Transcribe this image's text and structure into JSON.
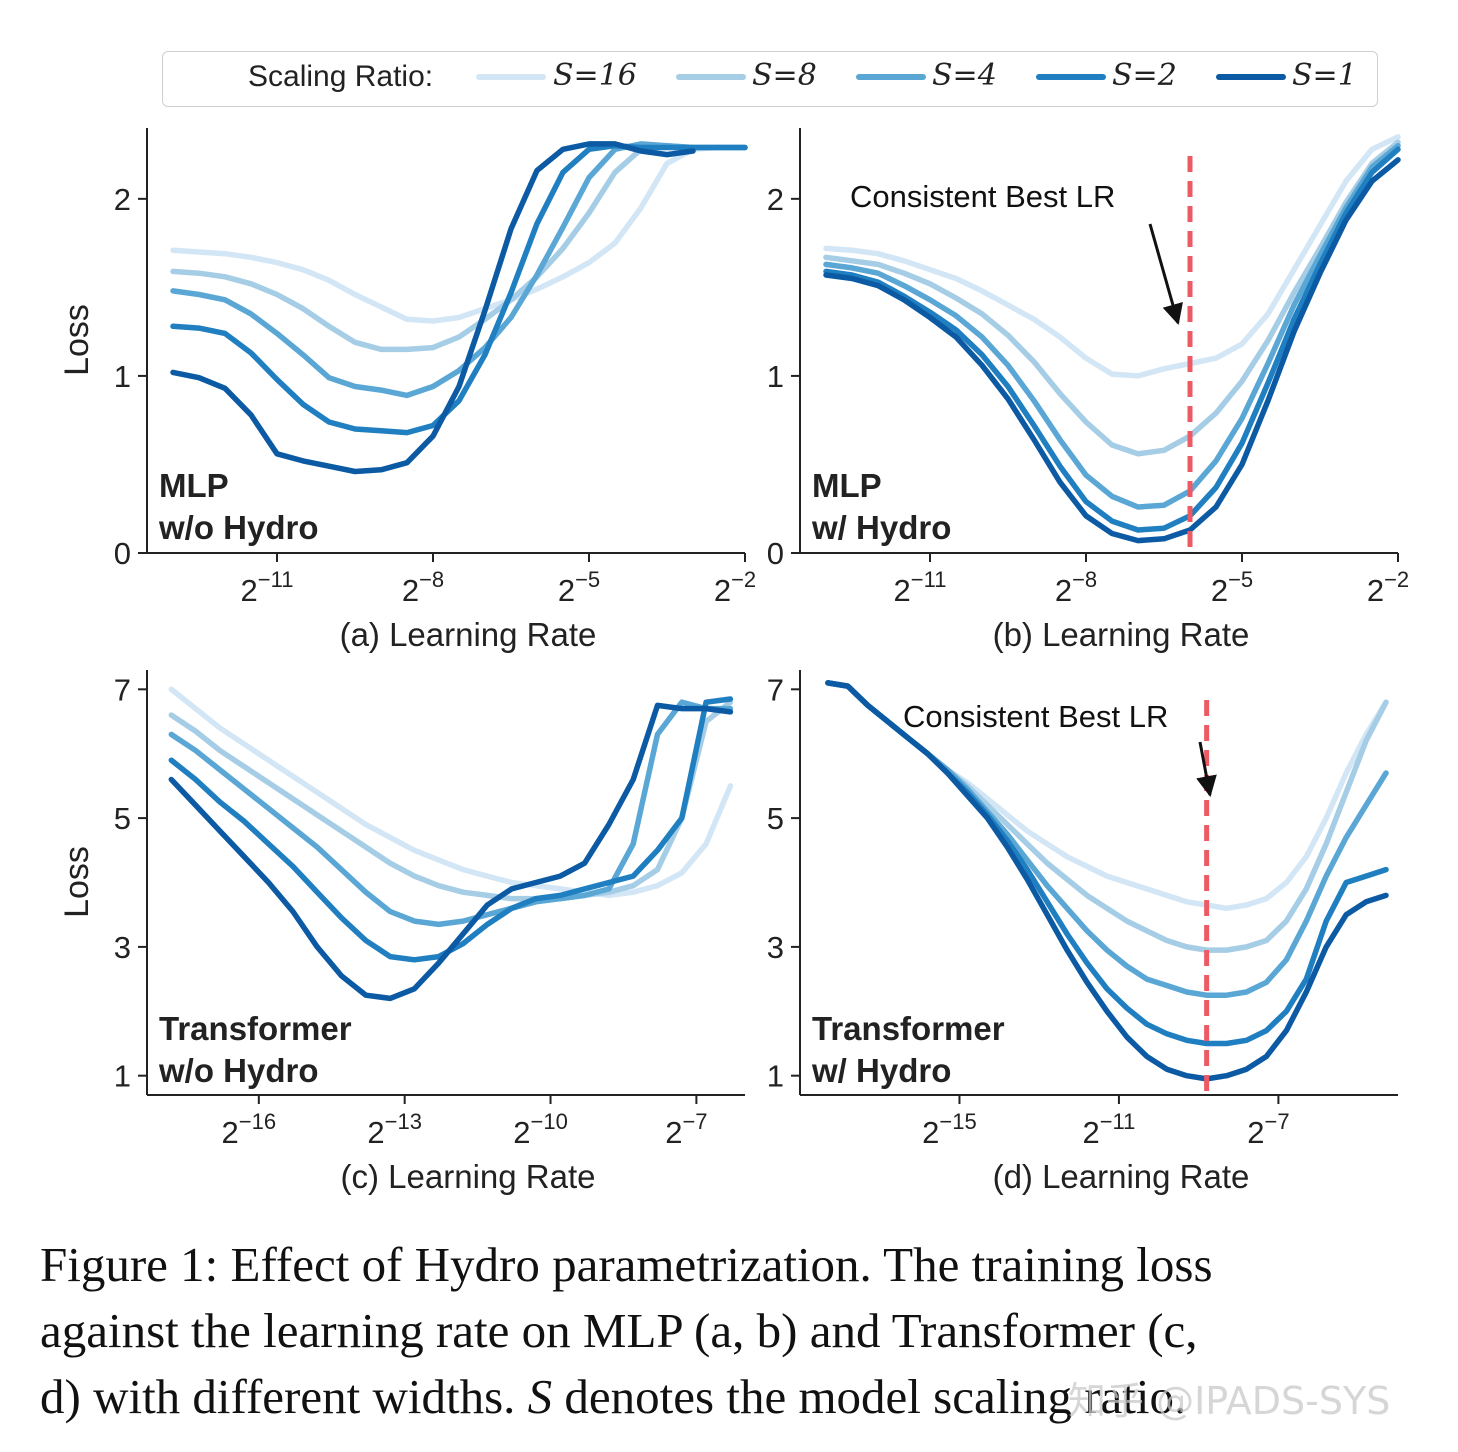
{
  "legend": {
    "title": "Scaling Ratio:",
    "entries": [
      {
        "label": "S=16",
        "color": "#d3e6f5"
      },
      {
        "label": "S=8",
        "color": "#a6cde6"
      },
      {
        "label": "S=4",
        "color": "#5aa7d6"
      },
      {
        "label": "S=2",
        "color": "#1f7fc0"
      },
      {
        "label": "S=1",
        "color": "#0b5aa3"
      }
    ]
  },
  "reference_line_color": "#ee5a64",
  "chart_data": [
    {
      "id": "a",
      "type": "line",
      "title": "MLP\nw/o Hydro",
      "title_lines": [
        "MLP",
        "w/o Hydro"
      ],
      "xlabel": "(a) Learning Rate",
      "ylabel": "Loss",
      "x_scale": "log2",
      "xlim": [
        -13.5,
        -2
      ],
      "ylim": [
        0,
        2.4
      ],
      "xticks": [
        -11,
        -8,
        -5,
        -2
      ],
      "xtick_labels": [
        "2^-11",
        "2^-8",
        "2^-5",
        "2^-2"
      ],
      "yticks": [
        0,
        1,
        2
      ],
      "ytick_labels": [
        "0",
        "1",
        "2"
      ],
      "x": [
        -13,
        -12.5,
        -12,
        -11.5,
        -11,
        -10.5,
        -10,
        -9.5,
        -9,
        -8.5,
        -8,
        -7.5,
        -7,
        -6.5,
        -6,
        -5.5,
        -5,
        -4.5,
        -4,
        -3.5,
        -3,
        -2.5,
        -2
      ],
      "series": [
        {
          "name": "S=16",
          "values": [
            1.71,
            1.7,
            1.69,
            1.67,
            1.64,
            1.6,
            1.54,
            1.46,
            1.39,
            1.32,
            1.31,
            1.33,
            1.38,
            1.43,
            1.49,
            1.56,
            1.64,
            1.75,
            1.95,
            2.2,
            2.28,
            2.29,
            2.29
          ]
        },
        {
          "name": "S=8",
          "values": [
            1.59,
            1.58,
            1.56,
            1.52,
            1.46,
            1.38,
            1.28,
            1.19,
            1.15,
            1.15,
            1.16,
            1.22,
            1.32,
            1.43,
            1.56,
            1.72,
            1.92,
            2.15,
            2.28,
            2.3,
            2.29,
            2.29,
            2.29
          ]
        },
        {
          "name": "S=4",
          "values": [
            1.48,
            1.46,
            1.43,
            1.35,
            1.24,
            1.12,
            0.99,
            0.94,
            0.92,
            0.89,
            0.94,
            1.03,
            1.16,
            1.33,
            1.57,
            1.84,
            2.12,
            2.28,
            2.31,
            2.3,
            2.29,
            2.29,
            2.29
          ]
        },
        {
          "name": "S=2",
          "values": [
            1.28,
            1.27,
            1.24,
            1.13,
            0.98,
            0.84,
            0.74,
            0.7,
            0.69,
            0.68,
            0.72,
            0.86,
            1.12,
            1.47,
            1.86,
            2.15,
            2.28,
            2.3,
            2.29,
            2.29,
            2.29,
            2.29,
            2.29
          ]
        },
        {
          "name": "S=1",
          "values": [
            1.02,
            0.99,
            0.93,
            0.78,
            0.56,
            0.52,
            0.49,
            0.46,
            0.47,
            0.51,
            0.66,
            0.94,
            1.37,
            1.83,
            2.16,
            2.28,
            2.31,
            2.31,
            2.27,
            2.25,
            2.27,
            null,
            null
          ]
        }
      ]
    },
    {
      "id": "b",
      "type": "line",
      "title": "MLP\nw/ Hydro",
      "title_lines": [
        "MLP",
        "w/ Hydro"
      ],
      "xlabel": "(b) Learning Rate",
      "ylabel": "",
      "x_scale": "log2",
      "xlim": [
        -13.5,
        -2
      ],
      "ylim": [
        0,
        2.4
      ],
      "xticks": [
        -11,
        -8,
        -5,
        -2
      ],
      "xtick_labels": [
        "2^-11",
        "2^-8",
        "2^-5",
        "2^-2"
      ],
      "yticks": [
        0,
        1,
        2
      ],
      "ytick_labels": [
        "0",
        "1",
        "2"
      ],
      "reference_x": -6,
      "annotation": "Consistent Best LR",
      "x": [
        -13,
        -12.5,
        -12,
        -11.5,
        -11,
        -10.5,
        -10,
        -9.5,
        -9,
        -8.5,
        -8,
        -7.5,
        -7,
        -6.5,
        -6,
        -5.5,
        -5,
        -4.5,
        -4,
        -3.5,
        -3,
        -2.5,
        -2
      ],
      "series": [
        {
          "name": "S=16",
          "values": [
            1.72,
            1.71,
            1.69,
            1.65,
            1.6,
            1.55,
            1.48,
            1.4,
            1.32,
            1.22,
            1.1,
            1.01,
            1.0,
            1.04,
            1.07,
            1.1,
            1.18,
            1.35,
            1.6,
            1.85,
            2.1,
            2.28,
            2.35
          ]
        },
        {
          "name": "S=8",
          "values": [
            1.67,
            1.65,
            1.63,
            1.58,
            1.52,
            1.44,
            1.35,
            1.23,
            1.08,
            0.9,
            0.74,
            0.61,
            0.56,
            0.58,
            0.66,
            0.79,
            0.97,
            1.2,
            1.47,
            1.72,
            1.98,
            2.2,
            2.32
          ]
        },
        {
          "name": "S=4",
          "values": [
            1.63,
            1.61,
            1.58,
            1.51,
            1.43,
            1.34,
            1.22,
            1.06,
            0.86,
            0.64,
            0.44,
            0.32,
            0.26,
            0.27,
            0.35,
            0.52,
            0.76,
            1.07,
            1.4,
            1.68,
            1.95,
            2.18,
            2.3
          ]
        },
        {
          "name": "S=2",
          "values": [
            1.59,
            1.57,
            1.53,
            1.45,
            1.36,
            1.26,
            1.12,
            0.94,
            0.72,
            0.49,
            0.29,
            0.18,
            0.13,
            0.14,
            0.21,
            0.37,
            0.62,
            0.96,
            1.32,
            1.63,
            1.92,
            2.15,
            2.28
          ]
        },
        {
          "name": "S=1",
          "values": [
            1.57,
            1.55,
            1.51,
            1.43,
            1.33,
            1.22,
            1.06,
            0.87,
            0.64,
            0.4,
            0.21,
            0.11,
            0.07,
            0.08,
            0.13,
            0.26,
            0.5,
            0.86,
            1.25,
            1.58,
            1.88,
            2.1,
            2.22
          ]
        }
      ]
    },
    {
      "id": "c",
      "type": "line",
      "title": "Transformer\nw/o Hydro",
      "title_lines": [
        "Transformer",
        "w/o Hydro"
      ],
      "xlabel": "(c) Learning Rate",
      "ylabel": "Loss",
      "x_scale": "log2",
      "xlim": [
        -18.3,
        -6
      ],
      "ylim": [
        0.7,
        7.3
      ],
      "xticks": [
        -16,
        -13,
        -10,
        -7
      ],
      "xtick_labels": [
        "2^-16",
        "2^-13",
        "2^-10",
        "2^-7"
      ],
      "yticks": [
        1,
        3,
        5,
        7
      ],
      "ytick_labels": [
        "1",
        "3",
        "5",
        "7"
      ],
      "x": [
        -17.8,
        -17.3,
        -16.8,
        -16.3,
        -15.8,
        -15.3,
        -14.8,
        -14.3,
        -13.8,
        -13.3,
        -12.8,
        -12.3,
        -11.8,
        -11.3,
        -10.8,
        -10.3,
        -9.8,
        -9.3,
        -8.8,
        -8.3,
        -7.8,
        -7.3,
        -6.8,
        -6.3
      ],
      "series": [
        {
          "name": "S=16",
          "values": [
            7.0,
            6.7,
            6.4,
            6.15,
            5.9,
            5.65,
            5.4,
            5.15,
            4.9,
            4.7,
            4.5,
            4.35,
            4.2,
            4.1,
            4.0,
            3.95,
            3.9,
            3.85,
            3.8,
            3.85,
            3.95,
            4.15,
            4.6,
            5.5
          ]
        },
        {
          "name": "S=8",
          "values": [
            6.6,
            6.35,
            6.05,
            5.8,
            5.55,
            5.3,
            5.05,
            4.8,
            4.55,
            4.3,
            4.1,
            3.95,
            3.85,
            3.8,
            3.75,
            3.75,
            3.75,
            3.8,
            3.85,
            3.95,
            4.2,
            5.0,
            6.5,
            6.8
          ]
        },
        {
          "name": "S=4",
          "values": [
            6.3,
            6.05,
            5.75,
            5.45,
            5.15,
            4.85,
            4.55,
            4.2,
            3.85,
            3.55,
            3.4,
            3.35,
            3.4,
            3.5,
            3.6,
            3.7,
            3.75,
            3.8,
            3.9,
            4.6,
            6.3,
            6.8,
            6.7,
            6.7
          ]
        },
        {
          "name": "S=2",
          "values": [
            5.9,
            5.6,
            5.25,
            4.95,
            4.6,
            4.25,
            3.85,
            3.45,
            3.1,
            2.85,
            2.8,
            2.85,
            3.05,
            3.35,
            3.6,
            3.75,
            3.8,
            3.9,
            4.0,
            4.1,
            4.5,
            5.0,
            6.8,
            6.85
          ]
        },
        {
          "name": "S=1",
          "values": [
            5.6,
            5.2,
            4.8,
            4.4,
            4.0,
            3.55,
            3.0,
            2.55,
            2.25,
            2.2,
            2.35,
            2.75,
            3.2,
            3.65,
            3.9,
            4.0,
            4.1,
            4.3,
            4.9,
            5.6,
            6.75,
            6.7,
            6.7,
            6.65
          ]
        }
      ]
    },
    {
      "id": "d",
      "type": "line",
      "title": "Transformer\nw/ Hydro",
      "title_lines": [
        "Transformer",
        "w/ Hydro"
      ],
      "xlabel": "(d) Learning Rate",
      "ylabel": "",
      "x_scale": "log2",
      "xlim": [
        -19,
        -4
      ],
      "ylim": [
        0.7,
        7.3
      ],
      "xticks": [
        -15,
        -11,
        -7
      ],
      "xtick_labels": [
        "2^-15",
        "2^-11",
        "2^-7"
      ],
      "yticks": [
        1,
        3,
        5,
        7
      ],
      "ytick_labels": [
        "1",
        "3",
        "5",
        "7"
      ],
      "reference_x": -8.8,
      "annotation": "Consistent Best LR",
      "x": [
        -18.3,
        -17.8,
        -17.3,
        -16.8,
        -16.3,
        -15.8,
        -15.3,
        -14.8,
        -14.3,
        -13.8,
        -13.3,
        -12.8,
        -12.3,
        -11.8,
        -11.3,
        -10.8,
        -10.3,
        -9.8,
        -9.3,
        -8.8,
        -8.3,
        -7.8,
        -7.3,
        -6.8,
        -6.3,
        -5.8,
        -5.3,
        -4.8,
        -4.3
      ],
      "series": [
        {
          "name": "S=16",
          "values": [
            7.1,
            7.05,
            6.75,
            6.5,
            6.25,
            6.0,
            5.75,
            5.55,
            5.3,
            5.05,
            4.8,
            4.6,
            4.4,
            4.25,
            4.1,
            4.0,
            3.9,
            3.8,
            3.7,
            3.65,
            3.6,
            3.65,
            3.75,
            4.0,
            4.4,
            5.0,
            5.7,
            6.3,
            6.8
          ]
        },
        {
          "name": "S=8",
          "values": [
            7.1,
            7.05,
            6.75,
            6.5,
            6.25,
            6.0,
            5.75,
            5.5,
            5.2,
            4.9,
            4.6,
            4.3,
            4.05,
            3.8,
            3.6,
            3.4,
            3.25,
            3.1,
            3.0,
            2.95,
            2.95,
            3.0,
            3.1,
            3.4,
            3.9,
            4.6,
            5.4,
            6.2,
            6.8
          ]
        },
        {
          "name": "S=4",
          "values": [
            7.1,
            7.05,
            6.75,
            6.5,
            6.25,
            6.0,
            5.75,
            5.45,
            5.1,
            4.75,
            4.35,
            3.95,
            3.6,
            3.25,
            2.95,
            2.7,
            2.5,
            2.4,
            2.3,
            2.25,
            2.25,
            2.3,
            2.45,
            2.8,
            3.4,
            4.1,
            4.7,
            5.2,
            5.7
          ]
        },
        {
          "name": "S=2",
          "values": [
            7.1,
            7.05,
            6.75,
            6.5,
            6.25,
            6.0,
            5.7,
            5.4,
            5.05,
            4.65,
            4.2,
            3.7,
            3.2,
            2.75,
            2.35,
            2.05,
            1.8,
            1.65,
            1.55,
            1.5,
            1.5,
            1.55,
            1.7,
            2.0,
            2.5,
            3.4,
            4.0,
            4.1,
            4.2
          ]
        },
        {
          "name": "S=1",
          "values": [
            7.1,
            7.05,
            6.75,
            6.5,
            6.25,
            6.0,
            5.7,
            5.35,
            5.0,
            4.55,
            4.05,
            3.5,
            2.95,
            2.45,
            2.0,
            1.6,
            1.3,
            1.1,
            1.0,
            0.95,
            1.0,
            1.1,
            1.3,
            1.7,
            2.3,
            3.0,
            3.5,
            3.7,
            3.8
          ]
        }
      ]
    }
  ],
  "caption": {
    "line1": "Figure 1: Effect of Hydro parametrization. The training loss",
    "line2": "against the learning rate on MLP (a, b) and Transformer (c,",
    "line3_pre": "d) with different widths. ",
    "line3_var": "S",
    "line3_post": " denotes the model scaling ratio."
  },
  "watermark": "知乎 @IPADS-SYS"
}
